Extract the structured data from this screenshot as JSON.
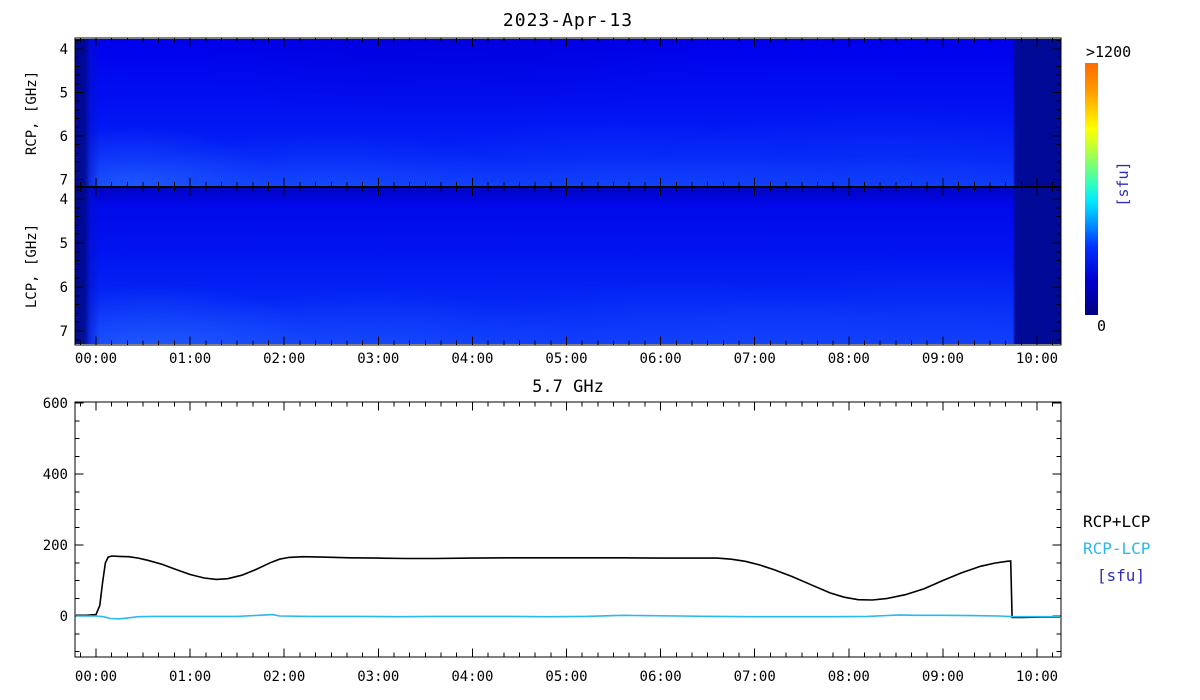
{
  "spectrogram": {
    "title": "2023-Apr-13",
    "rcp_axis_label": "RCP, [GHz]",
    "lcp_axis_label": "LCP, [GHz]",
    "freq_tick_labels": [
      "4",
      "5",
      "6",
      "7"
    ],
    "time_tick_labels": [
      "00:00",
      "01:00",
      "02:00",
      "03:00",
      "04:00",
      "05:00",
      "06:00",
      "07:00",
      "08:00",
      "09:00",
      "10:00"
    ],
    "colorbar": {
      "max_label": ">1200",
      "min_label": "0",
      "unit_label": "[sfu]"
    }
  },
  "lightcurve": {
    "title": "5.7 GHz",
    "y_tick_labels": [
      "0",
      "200",
      "400",
      "600"
    ],
    "time_tick_labels": [
      "00:00",
      "01:00",
      "02:00",
      "03:00",
      "04:00",
      "05:00",
      "06:00",
      "07:00",
      "08:00",
      "09:00",
      "10:00"
    ],
    "legend": {
      "total_label": "RCP+LCP",
      "diff_label": "RCP-LCP",
      "unit_label": "[sfu]"
    }
  },
  "colors": {
    "total_curve": "#000000",
    "diff_curve": "#2bb8ec",
    "unit_label_blue": "#2e2eb8",
    "spectro_background": "#0113f0",
    "no_data_band": "#000a96"
  },
  "chart_data": [
    {
      "type": "heatmap",
      "title": "2023-Apr-13",
      "x_tick_labels": [
        "00:00",
        "01:00",
        "02:00",
        "03:00",
        "04:00",
        "05:00",
        "06:00",
        "07:00",
        "08:00",
        "09:00",
        "10:00"
      ],
      "x_range_hours": [
        -0.22,
        10.25
      ],
      "panels": [
        {
          "name": "RCP",
          "ylabel": "RCP, [GHz]",
          "y_ticks_ghz": [
            4,
            5,
            6,
            7
          ],
          "y_range_ghz": [
            3.75,
            7.17
          ],
          "y_axis_inverted": true
        },
        {
          "name": "LCP",
          "ylabel": "LCP, [GHz]",
          "y_ticks_ghz": [
            4,
            5,
            6,
            7
          ],
          "y_range_ghz": [
            3.73,
            7.32
          ],
          "y_axis_inverted": true
        }
      ],
      "colorbar": {
        "min": 0,
        "min_label": "0",
        "max_label": ">1200",
        "unit": "[sfu]",
        "colormap": "jet (navy-blue-cyan-green-yellow-orange)"
      },
      "content_summary": "Nearly uniform quiet-Sun blue background (low flux ~50-200 sfu) with faint brighter patches near 7 GHz; dark navy no-data bands before ~23:58 and after ~09:45"
    },
    {
      "type": "line",
      "title": "5.7 GHz",
      "unit": "sfu",
      "ylim": [
        -115,
        620
      ],
      "y_ticks": [
        0,
        200,
        400,
        600
      ],
      "x_tick_labels": [
        "00:00",
        "01:00",
        "02:00",
        "03:00",
        "04:00",
        "05:00",
        "06:00",
        "07:00",
        "08:00",
        "09:00",
        "10:00"
      ],
      "x_range_hours": [
        -0.22,
        10.25
      ],
      "legend_position": "right",
      "series": [
        {
          "name": "RCP+LCP",
          "color": "#000000",
          "points": [
            [
              -0.22,
              2
            ],
            [
              -0.1,
              2
            ],
            [
              0.0,
              4
            ],
            [
              0.04,
              30
            ],
            [
              0.07,
              95
            ],
            [
              0.1,
              150
            ],
            [
              0.13,
              166
            ],
            [
              0.17,
              169
            ],
            [
              0.25,
              168
            ],
            [
              0.35,
              167
            ],
            [
              0.45,
              163
            ],
            [
              0.55,
              157
            ],
            [
              0.7,
              146
            ],
            [
              0.85,
              131
            ],
            [
              1.0,
              117
            ],
            [
              1.15,
              107
            ],
            [
              1.28,
              103
            ],
            [
              1.4,
              105
            ],
            [
              1.55,
              115
            ],
            [
              1.7,
              131
            ],
            [
              1.85,
              150
            ],
            [
              1.95,
              160
            ],
            [
              2.05,
              165
            ],
            [
              2.2,
              167
            ],
            [
              2.4,
              166
            ],
            [
              2.7,
              164
            ],
            [
              3.0,
              163
            ],
            [
              3.3,
              162
            ],
            [
              3.6,
              162
            ],
            [
              4.0,
              163
            ],
            [
              4.4,
              164
            ],
            [
              4.8,
              164
            ],
            [
              5.2,
              164
            ],
            [
              5.6,
              164
            ],
            [
              6.0,
              163
            ],
            [
              6.3,
              163
            ],
            [
              6.6,
              163
            ],
            [
              6.75,
              160
            ],
            [
              6.9,
              154
            ],
            [
              7.05,
              144
            ],
            [
              7.2,
              131
            ],
            [
              7.4,
              111
            ],
            [
              7.6,
              88
            ],
            [
              7.8,
              65
            ],
            [
              7.95,
              53
            ],
            [
              8.1,
              46
            ],
            [
              8.25,
              45
            ],
            [
              8.4,
              49
            ],
            [
              8.6,
              60
            ],
            [
              8.8,
              77
            ],
            [
              9.0,
              100
            ],
            [
              9.2,
              122
            ],
            [
              9.4,
              140
            ],
            [
              9.55,
              149
            ],
            [
              9.68,
              154
            ],
            [
              9.72,
              155
            ],
            [
              9.735,
              -4
            ],
            [
              9.85,
              -4
            ],
            [
              10.05,
              -3
            ],
            [
              10.25,
              -3
            ]
          ]
        },
        {
          "name": "RCP-LCP",
          "color": "#2bb8ec",
          "points": [
            [
              -0.22,
              0
            ],
            [
              0.0,
              0
            ],
            [
              0.08,
              -2
            ],
            [
              0.15,
              -7
            ],
            [
              0.25,
              -8
            ],
            [
              0.35,
              -5
            ],
            [
              0.45,
              -2
            ],
            [
              0.6,
              -1
            ],
            [
              0.9,
              -1
            ],
            [
              1.2,
              -1
            ],
            [
              1.5,
              -1
            ],
            [
              1.88,
              4
            ],
            [
              1.95,
              0
            ],
            [
              2.3,
              -1
            ],
            [
              2.8,
              -1
            ],
            [
              3.2,
              -2
            ],
            [
              3.6,
              -1
            ],
            [
              4.0,
              -1
            ],
            [
              4.4,
              -1
            ],
            [
              4.8,
              -2
            ],
            [
              5.2,
              -1
            ],
            [
              5.6,
              2
            ],
            [
              5.8,
              1
            ],
            [
              6.2,
              0
            ],
            [
              6.6,
              -1
            ],
            [
              7.0,
              -2
            ],
            [
              7.4,
              -2
            ],
            [
              7.8,
              -2
            ],
            [
              8.2,
              -1
            ],
            [
              8.55,
              3
            ],
            [
              8.7,
              2
            ],
            [
              9.0,
              2
            ],
            [
              9.3,
              1
            ],
            [
              9.6,
              0
            ],
            [
              9.75,
              -2
            ],
            [
              10.0,
              -2
            ],
            [
              10.25,
              -2
            ]
          ]
        }
      ]
    }
  ]
}
